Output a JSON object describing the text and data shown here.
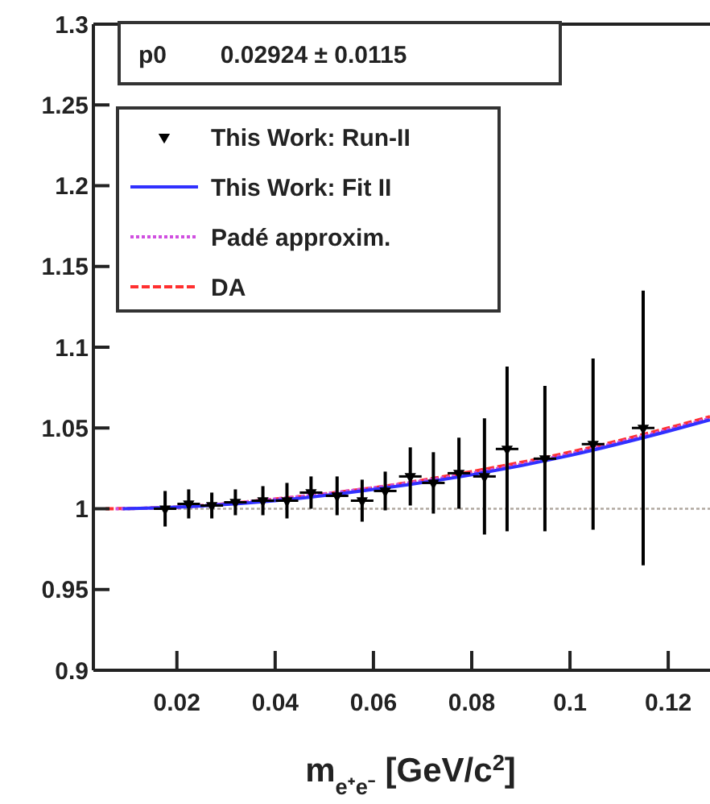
{
  "chart_data": {
    "type": "scatter",
    "xlabel": "m$_{e⁺e⁻}$ [GeV/c$^{2}$]",
    "annotations": [
      "p0        0.02924 ± 0.0115"
    ],
    "xlim": [
      0.003,
      0.1285
    ],
    "xticks": [
      0.02,
      0.04,
      0.06,
      0.08,
      0.1,
      0.12
    ],
    "ylim": [
      0.9,
      1.3
    ],
    "yticks": [
      0.9,
      0.95,
      1,
      1.05,
      1.1,
      1.15,
      1.2,
      1.25,
      1.3
    ],
    "legend": "top left",
    "grid": false,
    "ref_lines": [
      {
        "axis": "y",
        "value": 1,
        "color": "#b0a8a0",
        "line_style": "dotted"
      }
    ],
    "series": [
      {
        "name": "This Work: Run-II",
        "marker": "triangle",
        "color": "#000000",
        "x": [
          0.0176,
          0.0224,
          0.0271,
          0.0319,
          0.0375,
          0.0424,
          0.0473,
          0.0526,
          0.0577,
          0.0624,
          0.0675,
          0.0722,
          0.0774,
          0.0826,
          0.0872,
          0.0949,
          0.1047,
          0.1149
        ],
        "values": [
          1.0,
          1.003,
          1.002,
          1.004,
          1.005,
          1.005,
          1.01,
          1.008,
          1.005,
          1.011,
          1.02,
          1.016,
          1.022,
          1.02,
          1.037,
          1.031,
          1.04,
          1.05
        ],
        "xerrors": [
          0.0023,
          0.0023,
          0.0023,
          0.0023,
          0.0023,
          0.0023,
          0.0023,
          0.0023,
          0.0023,
          0.0023,
          0.0023,
          0.0023,
          0.0023,
          0.0023,
          0.0023,
          0.0023,
          0.0023,
          0.0023
        ],
        "errors": [
          0.011,
          0.009,
          0.008,
          0.008,
          0.009,
          0.011,
          0.01,
          0.012,
          0.013,
          0.012,
          0.018,
          0.019,
          0.022,
          0.036,
          0.051,
          0.045,
          0.053,
          0.085
        ]
      },
      {
        "name": "DA",
        "type": "line",
        "line_style": "dashed",
        "color": "#ff3030",
        "x": [
          0.0055,
          0.02,
          0.04,
          0.06,
          0.08,
          0.1,
          0.12,
          0.1285
        ],
        "values": [
          1.0,
          1.001,
          1.006,
          1.013,
          1.023,
          1.035,
          1.05,
          1.057
        ]
      },
      {
        "name": "Padé approxim.",
        "type": "line",
        "line_style": "dotted",
        "color": "#d050e0",
        "x": [
          0.0075,
          0.02,
          0.04,
          0.06,
          0.08,
          0.1,
          0.12,
          0.1285
        ],
        "values": [
          1.0,
          1.001,
          1.006,
          1.013,
          1.022,
          1.034,
          1.049,
          1.056
        ]
      },
      {
        "name": "This Work: Fit II",
        "type": "line",
        "line_style": "solid",
        "color": "#3030ff",
        "x": [
          0.009,
          0.02,
          0.04,
          0.06,
          0.08,
          0.1,
          0.12,
          0.1285
        ],
        "values": [
          1.0,
          1.001,
          1.005,
          1.012,
          1.021,
          1.033,
          1.048,
          1.055
        ]
      }
    ]
  }
}
